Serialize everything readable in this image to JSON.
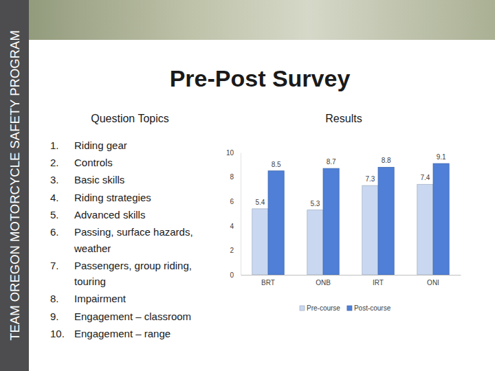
{
  "page": {
    "sidebar": "TEAM OREGON MOTORCYCLE SAFETY PROGRAM",
    "title": "Pre-Post Survey",
    "topics_heading": "Question Topics",
    "topics": [
      {
        "number": "1.",
        "lines": [
          "Riding gear"
        ]
      },
      {
        "number": "2.",
        "lines": [
          "Controls"
        ]
      },
      {
        "number": "3.",
        "lines": [
          "Basic skills"
        ]
      },
      {
        "number": "4.",
        "lines": [
          "Riding strategies"
        ]
      },
      {
        "number": "5.",
        "lines": [
          "Advanced skills"
        ]
      },
      {
        "number": "6.",
        "lines": [
          "Passing, surface hazards,",
          "weather"
        ]
      },
      {
        "number": "7.",
        "lines": [
          "Passengers, group riding,",
          "touring"
        ]
      },
      {
        "number": "8.",
        "lines": [
          "Impairment"
        ]
      },
      {
        "number": "9.",
        "lines": [
          "Engagement – classroom"
        ]
      },
      {
        "number": "10.",
        "lines": [
          "Engagement – range"
        ]
      }
    ]
  },
  "chart_data": {
    "type": "bar",
    "title": "Results",
    "categories": [
      "BRT",
      "ONB",
      "IRT",
      "ONI"
    ],
    "series": [
      {
        "name": "Pre-course",
        "color": "#c9d8f0",
        "values": [
          5.4,
          5.3,
          7.3,
          7.4
        ]
      },
      {
        "name": "Post-course",
        "color": "#4f7fd6",
        "values": [
          8.5,
          8.7,
          8.8,
          9.1
        ]
      }
    ],
    "ylim": [
      0,
      10
    ],
    "yticks": [
      0,
      2,
      4,
      6,
      8,
      10
    ],
    "grid": false,
    "legend": "bottom",
    "data_labels": true
  }
}
